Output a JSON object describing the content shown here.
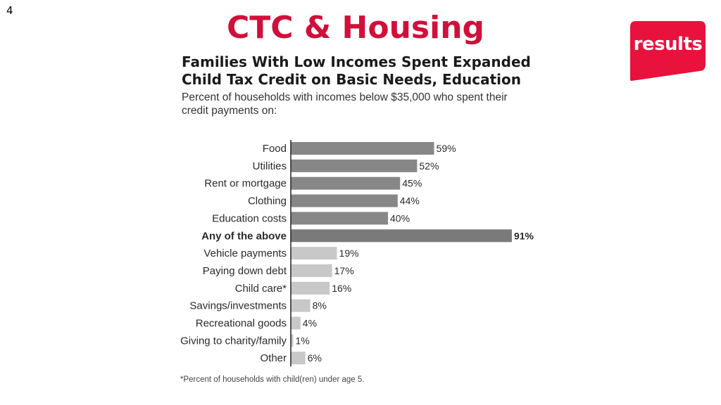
{
  "slide": {
    "number": "4",
    "title": "CTC & Housing",
    "title_color": "#d0103a"
  },
  "logo": {
    "text": "results",
    "color": "#e8123c"
  },
  "footnote": "*Percent of households with child(ren) under age 5.",
  "chart_data": {
    "type": "bar",
    "orientation": "horizontal",
    "title": "Families With Low Incomes Spent Expanded Child Tax Credit on Basic Needs, Education",
    "subtitle": "Percent of households with incomes below $35,000 who spent their credit payments on:",
    "xlim": [
      0,
      100
    ],
    "grid": false,
    "categories": [
      "Food",
      "Utilities",
      "Rent or mortgage",
      "Clothing",
      "Education costs",
      "Any of the above",
      "Vehicle payments",
      "Paying down debt",
      "Child care*",
      "Savings/investments",
      "Recreational goods",
      "Giving to charity/family",
      "Other"
    ],
    "values": [
      59,
      52,
      45,
      44,
      40,
      91,
      19,
      17,
      16,
      8,
      4,
      1,
      6
    ],
    "value_labels": [
      "59%",
      "52%",
      "45%",
      "44%",
      "40%",
      "91%",
      "19%",
      "17%",
      "16%",
      "8%",
      "4%",
      "1%",
      "6%"
    ],
    "groups": [
      "basic",
      "basic",
      "basic",
      "basic",
      "basic",
      "total",
      "other",
      "other",
      "other",
      "other",
      "other",
      "other",
      "other"
    ],
    "colors": {
      "basic": "#878787",
      "total": "#7a7a7a",
      "other": "#c8c8c8",
      "axis": "#222222",
      "label": "#2a2a2a"
    },
    "emphasized_category": "Any of the above"
  }
}
